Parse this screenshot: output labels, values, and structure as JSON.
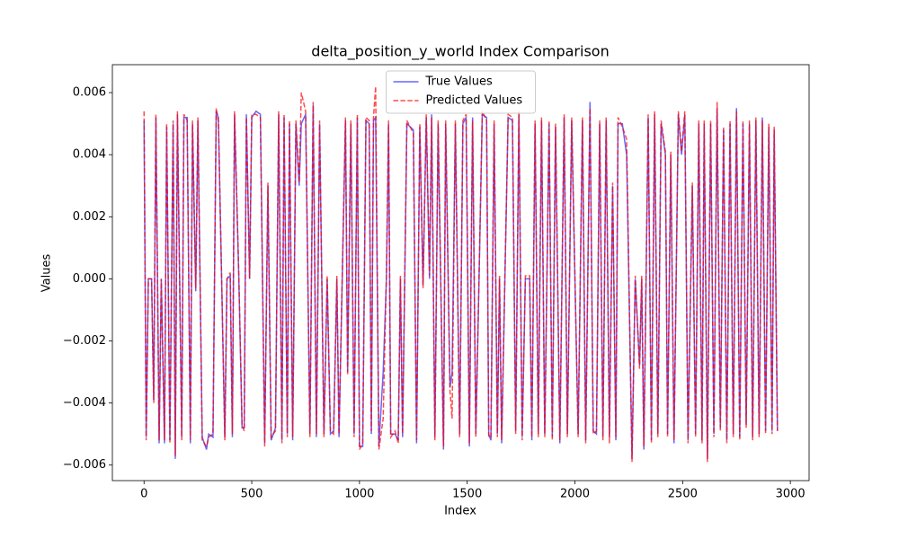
{
  "chart_data": {
    "type": "line",
    "title": "delta_position_y_world Index Comparison",
    "x_label": "Index",
    "y_label": "Values",
    "legend": "upper center",
    "x": [
      0,
      10,
      20,
      35,
      45,
      55,
      70,
      80,
      95,
      105,
      120,
      135,
      145,
      155,
      175,
      185,
      200,
      215,
      225,
      240,
      250,
      270,
      290,
      300,
      320,
      335,
      345,
      360,
      375,
      385,
      400,
      410,
      420,
      440,
      455,
      465,
      475,
      490,
      500,
      520,
      540,
      560,
      575,
      590,
      610,
      625,
      640,
      650,
      665,
      675,
      690,
      705,
      720,
      730,
      750,
      770,
      785,
      800,
      815,
      835,
      850,
      865,
      880,
      895,
      905,
      920,
      935,
      945,
      960,
      975,
      990,
      1000,
      1015,
      1030,
      1045,
      1055,
      1065,
      1075,
      1090,
      1110,
      1125,
      1135,
      1145,
      1165,
      1180,
      1190,
      1200,
      1220,
      1250,
      1265,
      1280,
      1295,
      1310,
      1325,
      1335,
      1350,
      1365,
      1390,
      1400,
      1420,
      1430,
      1445,
      1465,
      1480,
      1495,
      1510,
      1525,
      1540,
      1555,
      1570,
      1590,
      1600,
      1610,
      1625,
      1640,
      1650,
      1660,
      1675,
      1690,
      1710,
      1725,
      1740,
      1755,
      1770,
      1790,
      1800,
      1815,
      1830,
      1845,
      1860,
      1880,
      1895,
      1910,
      1930,
      1950,
      1965,
      1985,
      2000,
      2015,
      2035,
      2050,
      2070,
      2085,
      2100,
      2115,
      2130,
      2145,
      2160,
      2175,
      2190,
      2200,
      2220,
      2240,
      2265,
      2280,
      2300,
      2310,
      2320,
      2340,
      2355,
      2370,
      2385,
      2400,
      2420,
      2430,
      2445,
      2460,
      2480,
      2495,
      2510,
      2525,
      2545,
      2560,
      2575,
      2590,
      2600,
      2615,
      2630,
      2645,
      2660,
      2675,
      2690,
      2705,
      2720,
      2735,
      2750,
      2765,
      2780,
      2795,
      2810,
      2825,
      2840,
      2855,
      2870,
      2885,
      2900,
      2915,
      2925,
      2940
    ],
    "series": [
      {
        "name": "True Values",
        "color": "#0000ff",
        "linestyle": "solid",
        "values": [
          0.0051,
          -0.0051,
          0,
          0,
          -0.0039,
          0.0052,
          -0.0053,
          0,
          -0.0053,
          0.0049,
          -0.0052,
          0.005,
          -0.0058,
          0.0053,
          -0.0051,
          0.0052,
          0.0052,
          -0.0053,
          0.005,
          -0.0004,
          0.0051,
          -0.0051,
          -0.0055,
          -0.005,
          -0.0051,
          0.0054,
          0.0052,
          0,
          -0.0051,
          0,
          0.0001,
          -0.0051,
          0.0053,
          0,
          -0.0048,
          -0.0048,
          0.0053,
          0,
          0.0052,
          0.0054,
          0.0053,
          -0.0053,
          0.003,
          -0.0052,
          -0.0048,
          0.0053,
          -0.0052,
          0.0052,
          -0.005,
          0.005,
          -0.0052,
          0.005,
          0.003,
          0.005,
          0.0053,
          -0.005,
          0.0056,
          -0.0051,
          0.005,
          -0.005,
          0,
          -0.005,
          -0.0049,
          0,
          -0.0051,
          0,
          0.0051,
          -0.003,
          0.005,
          -0.005,
          0.0052,
          -0.0054,
          -0.0054,
          0.0051,
          0.005,
          -0.005,
          0.0051,
          0.0052,
          -0.0054,
          -0.003,
          0,
          0.005,
          -0.005,
          -0.005,
          -0.0052,
          0,
          -0.0051,
          0.005,
          0.0048,
          -0.0053,
          0.0049,
          -0.0002,
          0.0052,
          0,
          0.0053,
          -0.0051,
          0.005,
          -0.0055,
          0.005,
          -0.0035,
          -0.003,
          0.005,
          -0.005,
          0.005,
          0.0052,
          -0.0054,
          0.0052,
          -0.005,
          0,
          0.0053,
          0.0052,
          -0.005,
          -0.0052,
          0.005,
          -0.005,
          0,
          -0.0053,
          0,
          0.0052,
          0.0051,
          -0.0049,
          0.0053,
          -0.0051,
          0,
          0,
          -0.0052,
          0.005,
          -0.005,
          0.0051,
          -0.005,
          0.005,
          -0.0051,
          0.0049,
          -0.0053,
          0.0052,
          -0.005,
          0.0051,
          0,
          -0.005,
          0.0051,
          -0.0052,
          0.0057,
          -0.0049,
          -0.005,
          0.005,
          -0.0051,
          0.0051,
          -0.0051,
          0.003,
          -0.0052,
          0.005,
          0.005,
          0.004,
          -0.0058,
          0,
          -0.0028,
          0,
          -0.0055,
          0.0052,
          -0.0052,
          0.0053,
          -0.005,
          0.005,
          0.004,
          -0.005,
          0.004,
          -0.0053,
          0.0053,
          0.004,
          0.0053,
          -0.0052,
          0.003,
          -0.005,
          0.005,
          -0.0052,
          0.005,
          -0.0058,
          0.005,
          -0.005,
          0.0055,
          -0.0048,
          0.0048,
          -0.0052,
          0.005,
          -0.005,
          0.0055,
          -0.0051,
          0.005,
          -0.0047,
          0.005,
          -0.0051,
          0.0051,
          -0.005,
          0.0052,
          -0.0049,
          0.0049,
          -0.0049,
          0.0048,
          -0.0049
        ]
      },
      {
        "name": "Predicted Values",
        "color": "#ff0000",
        "linestyle": "dashed",
        "values": [
          0.0054,
          -0.0052,
          0,
          0,
          -0.004,
          0.0053,
          -0.0052,
          0,
          -0.0052,
          0.005,
          -0.0053,
          0.0051,
          -0.0057,
          0.0054,
          -0.0052,
          0.0053,
          0.0051,
          -0.0052,
          0.0051,
          -0.0003,
          0.0052,
          -0.0052,
          -0.0054,
          -0.0051,
          -0.005,
          0.0055,
          0.0051,
          0.0001,
          -0.0052,
          0,
          0.0002,
          -0.005,
          0.0054,
          0.0001,
          -0.0047,
          -0.0049,
          0.0052,
          0,
          0.0053,
          0.0053,
          0.0052,
          -0.0054,
          0.0031,
          -0.0051,
          -0.0049,
          0.0054,
          -0.0053,
          0.0053,
          -0.0051,
          0.0051,
          -0.0051,
          0.0051,
          0.0031,
          0.006,
          0.0054,
          -0.0051,
          0.0057,
          -0.005,
          0.0051,
          -0.0051,
          0.0001,
          -0.0049,
          -0.005,
          0.0001,
          -0.005,
          0.0001,
          0.0052,
          -0.0031,
          0.0051,
          -0.0051,
          0.0053,
          -0.0055,
          -0.0053,
          0.0052,
          0.0051,
          -0.0049,
          0.0052,
          0.0062,
          -0.0055,
          -0.0045,
          0.0001,
          0.0051,
          -0.0051,
          -0.0049,
          -0.0053,
          0.0001,
          -0.005,
          0.0051,
          0.0047,
          -0.0052,
          0.005,
          -0.0003,
          0.0053,
          0.0001,
          0.0052,
          -0.0052,
          0.0051,
          -0.0054,
          0.0051,
          -0.0036,
          -0.0045,
          0.0051,
          -0.0051,
          0.0051,
          0.0053,
          -0.0053,
          0.0051,
          -0.0051,
          0.0001,
          0.0054,
          0.0051,
          -0.0051,
          -0.0051,
          0.0051,
          -0.0051,
          0.0001,
          -0.0052,
          0.0001,
          0.0053,
          0.0052,
          -0.005,
          0.0054,
          -0.0052,
          0.0001,
          0.0001,
          -0.0051,
          0.0051,
          -0.0051,
          0.0052,
          -0.0051,
          0.0051,
          -0.0052,
          0.005,
          -0.0052,
          0.0053,
          -0.0051,
          0.0052,
          0.0001,
          -0.0051,
          0.0052,
          -0.0053,
          0.0055,
          -0.005,
          -0.0049,
          0.0051,
          -0.0052,
          0.0052,
          -0.0053,
          0.0031,
          -0.0051,
          0.0052,
          0.0049,
          0.0045,
          -0.0059,
          0.0001,
          -0.0029,
          0.0001,
          -0.0054,
          0.0053,
          -0.0053,
          0.0054,
          -0.0051,
          0.0051,
          0.0041,
          -0.0051,
          0.0041,
          -0.0052,
          0.0054,
          0.0041,
          0.0054,
          -0.0053,
          0.0031,
          -0.0051,
          0.0051,
          -0.0053,
          0.0051,
          -0.0059,
          0.0051,
          -0.0051,
          0.0057,
          -0.0049,
          0.0049,
          -0.0053,
          0.0051,
          -0.0051,
          0.0054,
          -0.0052,
          0.0051,
          -0.0048,
          0.0051,
          -0.0052,
          0.0052,
          -0.0051,
          0.0051,
          -0.005,
          0.005,
          -0.005,
          0.0049,
          -0.0049
        ]
      }
    ],
    "xlim": [
      -147,
      3087
    ],
    "ylim": [
      -0.0065,
      0.0069
    ],
    "xticks": [
      0,
      500,
      1000,
      1500,
      2000,
      2500,
      3000
    ],
    "yticks": [
      {
        "value": -0.006,
        "label": "−0.006"
      },
      {
        "value": -0.004,
        "label": "−0.004"
      },
      {
        "value": -0.002,
        "label": "−0.002"
      },
      {
        "value": 0,
        "label": "0.000"
      },
      {
        "value": 0.002,
        "label": "0.002"
      },
      {
        "value": 0.004,
        "label": "0.004"
      },
      {
        "value": 0.006,
        "label": "0.006"
      }
    ]
  }
}
